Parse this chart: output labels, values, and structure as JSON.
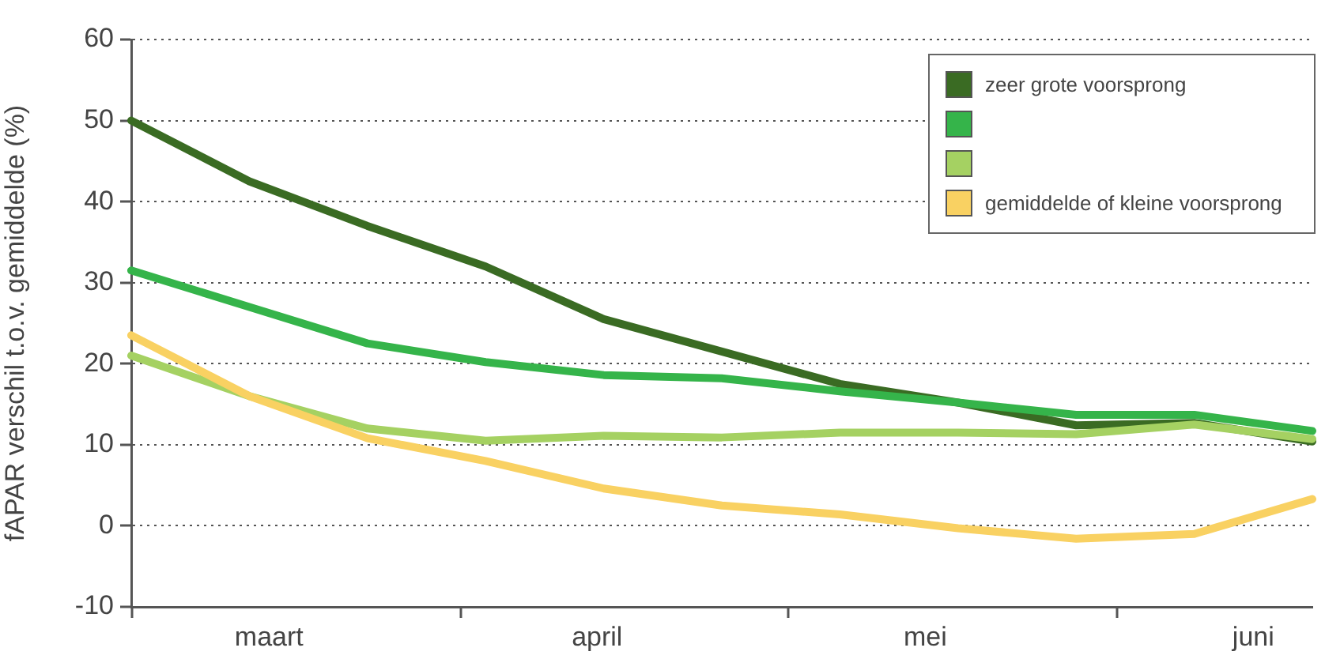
{
  "chart_data": {
    "type": "line",
    "ylabel": "fAPAR verschil t.o.v. gemiddelde (%)",
    "categories": [
      null,
      null,
      null,
      null,
      null,
      null,
      null,
      null,
      null,
      null,
      null
    ],
    "annotations": [
      "maart",
      "april",
      "mei",
      "juni"
    ],
    "ylim": [
      -10,
      60
    ],
    "yticks": [
      -10,
      0,
      10,
      20,
      30,
      40,
      50,
      60
    ],
    "grid": "y",
    "legend": "top right",
    "marker": "none",
    "line_style": "solid",
    "series": [
      {
        "name": "zeer grote voorsprong",
        "color": "#3a6b23",
        "values": [
          50,
          42.5,
          37,
          32,
          25.5,
          21.5,
          17.5,
          15.2,
          12.4,
          12.7,
          10.4
        ]
      },
      {
        "color": "#35b44a",
        "values": [
          31.5,
          27,
          22.5,
          20.2,
          18.6,
          18.2,
          16.6,
          15.2,
          13.7,
          13.7,
          11.7
        ]
      },
      {
        "color": "#a5d162",
        "values": [
          21,
          16,
          12,
          10.5,
          11.1,
          10.9,
          11.5,
          11.5,
          11.3,
          12.5,
          10.7
        ]
      },
      {
        "name": "gemiddelde of kleine voorsprong",
        "color": "#f9d162",
        "values": [
          23.5,
          16,
          10.8,
          8,
          4.6,
          2.5,
          1.4,
          -0.3,
          -1.6,
          -1,
          3.3
        ]
      }
    ]
  }
}
